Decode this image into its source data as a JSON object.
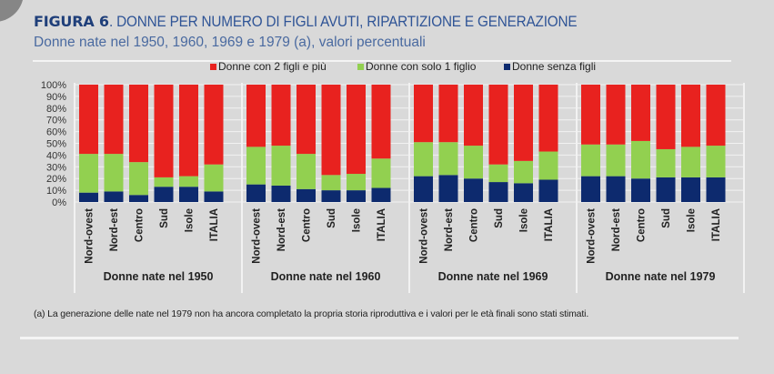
{
  "header": {
    "figure_label": "FIGURA 6",
    "title_rest": ". DONNE PER NUMERO DI FIGLI AVUTI, RIPARTIZIONE E GENERAZIONE",
    "subtitle": "Donne nate nel 1950, 1960, 1969  e 1979 (a), valori percentuali"
  },
  "footnote": "(a) La generazione delle nate nel 1979 non ha ancora completato la propria storia riproduttiva e i valori per le età finali sono stati stimati.",
  "colors": {
    "two_plus": "#e8221f",
    "one": "#92d050",
    "none": "#0d2a6e",
    "background": "#d9d9d9",
    "title": "#2f5496"
  },
  "chart_data": {
    "type": "bar",
    "stacked": true,
    "normalized": true,
    "title": "DONNE PER NUMERO DI FIGLI AVUTI, RIPARTIZIONE E GENERAZIONE",
    "subtitle": "Donne nate nel 1950, 1960, 1969  e 1979 (a), valori percentuali",
    "ylabel": "",
    "ylim": [
      0,
      100
    ],
    "yticks": [
      "0%",
      "10%",
      "20%",
      "30%",
      "40%",
      "50%",
      "60%",
      "70%",
      "80%",
      "90%",
      "100%"
    ],
    "grid": true,
    "legend_position": "top-center",
    "legend": [
      "Donne con 2 figli e più",
      "Donne con solo 1 figlio",
      "Donne senza figli"
    ],
    "categories": [
      "Nord-ovest",
      "Nord-est",
      "Centro",
      "Sud",
      "Isole",
      "ITALIA"
    ],
    "groups": [
      {
        "label": "Donne nate nel 1950",
        "series": [
          {
            "name": "Donne senza figli",
            "values": [
              8,
              9,
              6,
              13,
              13,
              9
            ]
          },
          {
            "name": "Donne con solo 1 figlio",
            "values": [
              33,
              32,
              28,
              8,
              9,
              23
            ]
          },
          {
            "name": "Donne con 2 figli e più",
            "values": [
              59,
              59,
              66,
              79,
              78,
              68
            ]
          }
        ]
      },
      {
        "label": "Donne nate nel 1960",
        "series": [
          {
            "name": "Donne senza figli",
            "values": [
              15,
              14,
              11,
              10,
              10,
              12
            ]
          },
          {
            "name": "Donne con solo 1 figlio",
            "values": [
              32,
              34,
              30,
              13,
              14,
              25
            ]
          },
          {
            "name": "Donne con 2 figli e più",
            "values": [
              53,
              52,
              59,
              77,
              76,
              63
            ]
          }
        ]
      },
      {
        "label": "Donne nate nel 1969",
        "series": [
          {
            "name": "Donne senza figli",
            "values": [
              22,
              23,
              20,
              17,
              16,
              19
            ]
          },
          {
            "name": "Donne con solo 1 figlio",
            "values": [
              29,
              28,
              28,
              15,
              19,
              24
            ]
          },
          {
            "name": "Donne con 2 figli e più",
            "values": [
              49,
              49,
              52,
              68,
              65,
              57
            ]
          }
        ]
      },
      {
        "label": "Donne nate nel 1979",
        "series": [
          {
            "name": "Donne senza figli",
            "values": [
              22,
              22,
              20,
              21,
              21,
              21
            ]
          },
          {
            "name": "Donne con solo 1 figlio",
            "values": [
              27,
              27,
              32,
              24,
              26,
              27
            ]
          },
          {
            "name": "Donne con 2 figli e più",
            "values": [
              51,
              51,
              48,
              55,
              53,
              52
            ]
          }
        ]
      }
    ]
  }
}
